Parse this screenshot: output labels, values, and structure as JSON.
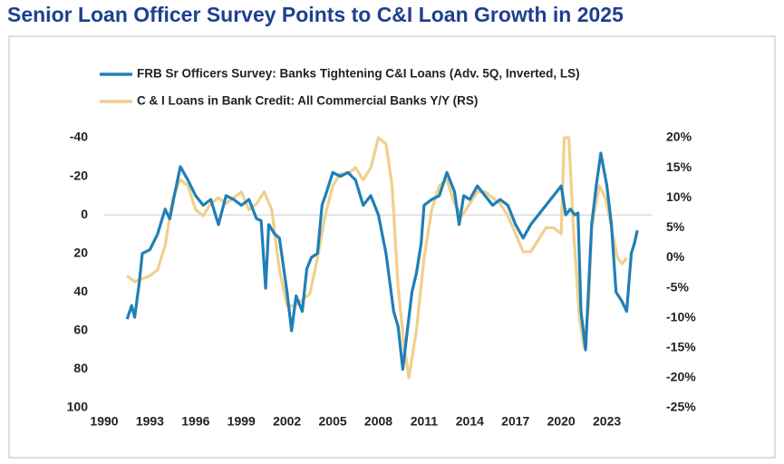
{
  "chart_data": {
    "type": "line",
    "title": "Senior Loan Officer Survey Points to C&I Loan Growth in 2025",
    "xlim": [
      1990,
      2026
    ],
    "xticks": [
      1990,
      1993,
      1996,
      1999,
      2002,
      2005,
      2008,
      2011,
      2014,
      2017,
      2020,
      2023
    ],
    "ylim": [
      -40,
      100
    ],
    "y_inverted": true,
    "yticks": [
      -40,
      -20,
      0,
      20,
      40,
      60,
      80,
      100
    ],
    "y2lim": [
      20,
      -25
    ],
    "y2ticks": [
      {
        "value": 20,
        "label": "20%"
      },
      {
        "value": 15,
        "label": "15%"
      },
      {
        "value": 10,
        "label": "10%"
      },
      {
        "value": 5,
        "label": "5%"
      },
      {
        "value": 0,
        "label": "0%"
      },
      {
        "value": -5,
        "label": "-5%"
      },
      {
        "value": -10,
        "label": "-10%"
      },
      {
        "value": -15,
        "label": "-15%"
      },
      {
        "value": -20,
        "label": "-20%"
      },
      {
        "value": -25,
        "label": "-25%"
      }
    ],
    "series": [
      {
        "name": "FRB Sr Officers Survey: Banks Tightening C&I Loans (Adv. 5Q, Inverted, LS)",
        "color": "#1f7fb8",
        "axis": "y",
        "x": [
          1991.5,
          1991.8,
          1992.0,
          1992.3,
          1992.5,
          1993.0,
          1993.5,
          1994.0,
          1994.3,
          1994.6,
          1995.0,
          1995.5,
          1996.0,
          1996.5,
          1997.0,
          1997.5,
          1998.0,
          1998.5,
          1999.0,
          1999.5,
          2000.0,
          2000.3,
          2000.6,
          2000.8,
          2001.2,
          2001.5,
          2002.0,
          2002.3,
          2002.6,
          2003.0,
          2003.3,
          2003.6,
          2004.0,
          2004.3,
          2004.6,
          2005.0,
          2005.5,
          2006.0,
          2006.5,
          2007.0,
          2007.5,
          2008.0,
          2008.5,
          2009.0,
          2009.3,
          2009.6,
          2009.9,
          2010.2,
          2010.5,
          2010.8,
          2011.0,
          2011.5,
          2012.0,
          2012.5,
          2013.0,
          2013.3,
          2013.6,
          2014.0,
          2014.5,
          2015.0,
          2015.5,
          2016.0,
          2016.5,
          2017.0,
          2017.5,
          2018.0,
          2018.5,
          2019.0,
          2019.5,
          2020.0,
          2020.3,
          2020.6,
          2020.9,
          2021.1,
          2021.3,
          2021.6,
          2022.0,
          2022.3,
          2022.6,
          2023.0,
          2023.3,
          2023.6,
          2024.0,
          2024.3,
          2024.6,
          2024.8,
          2025.0
        ],
        "values": [
          54,
          47,
          53,
          35,
          20,
          18,
          10,
          -3,
          2,
          -10,
          -25,
          -18,
          -10,
          -5,
          -8,
          5,
          -10,
          -8,
          -5,
          -8,
          2,
          3,
          38,
          5,
          10,
          12,
          40,
          60,
          42,
          50,
          28,
          22,
          20,
          -5,
          -12,
          -22,
          -20,
          -22,
          -18,
          -5,
          -10,
          0,
          20,
          50,
          58,
          80,
          60,
          40,
          30,
          15,
          -5,
          -8,
          -10,
          -22,
          -12,
          5,
          -10,
          -8,
          -15,
          -10,
          -5,
          -8,
          -5,
          5,
          12,
          5,
          0,
          -5,
          -10,
          -15,
          0,
          -3,
          0,
          -1,
          50,
          70,
          5,
          -15,
          -32,
          -15,
          5,
          40,
          45,
          50,
          20,
          15,
          8
        ]
      },
      {
        "name": "C & I Loans in Bank Credit: All Commercial Banks Y/Y (RS)",
        "color": "#f0d08a",
        "axis": "y2",
        "x": [
          1991.5,
          1992.0,
          1992.5,
          1993.0,
          1993.5,
          1994.0,
          1994.5,
          1995.0,
          1995.5,
          1996.0,
          1996.5,
          1997.0,
          1997.5,
          1998.0,
          1998.5,
          1999.0,
          1999.5,
          2000.0,
          2000.5,
          2001.0,
          2001.5,
          2002.0,
          2002.5,
          2003.0,
          2003.5,
          2004.0,
          2004.5,
          2005.0,
          2005.5,
          2006.0,
          2006.5,
          2007.0,
          2007.5,
          2008.0,
          2008.5,
          2008.9,
          2009.3,
          2009.7,
          2010.0,
          2010.5,
          2011.0,
          2011.5,
          2012.0,
          2012.5,
          2013.0,
          2013.5,
          2014.0,
          2014.5,
          2015.0,
          2015.5,
          2016.0,
          2016.5,
          2017.0,
          2017.5,
          2018.0,
          2018.5,
          2019.0,
          2019.5,
          2020.0,
          2020.2,
          2020.5,
          2020.8,
          2021.2,
          2021.5,
          2021.8,
          2022.0,
          2022.5,
          2022.9,
          2023.3,
          2023.7,
          2024.0,
          2024.3
        ],
        "values": [
          -3,
          -4,
          -3.5,
          -3,
          -2,
          2,
          10,
          13,
          12,
          8,
          7,
          9,
          10,
          9,
          10,
          11,
          8,
          9,
          11,
          8,
          -2,
          -8,
          -8,
          -7,
          -6,
          0,
          7,
          12,
          14,
          14,
          15,
          13,
          15,
          20,
          19,
          12,
          -5,
          -15,
          -20,
          -12,
          0,
          8,
          12,
          13,
          9,
          7,
          9,
          11,
          11,
          10,
          9,
          7,
          4,
          1,
          1,
          3,
          5,
          5,
          4,
          20,
          20,
          5,
          -10,
          -15,
          -8,
          5,
          12,
          10,
          5,
          0,
          -1,
          0
        ]
      }
    ]
  }
}
